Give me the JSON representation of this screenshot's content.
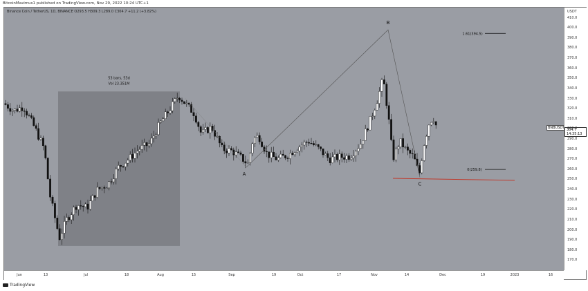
{
  "header": {
    "published_by": "BitcoinMaximus1 published on TradingView.com, Nov 29, 2022 10:24 UTC+1"
  },
  "legend": {
    "symbol_line": "Binance Coin / TetherUS, 1D, BINANCE",
    "ohlc": "O293.5 H309.3 L289.0 C304.7 +11.2 (+3.82%)"
  },
  "axis": {
    "unit": "USDT",
    "y_ticks": [
      "410.0",
      "400.0",
      "390.0",
      "380.0",
      "370.0",
      "360.0",
      "350.0",
      "340.0",
      "330.0",
      "320.0",
      "310.0",
      "300.0",
      "290.0",
      "280.0",
      "270.0",
      "260.0",
      "250.0",
      "240.0",
      "230.0",
      "220.0",
      "210.0",
      "200.0",
      "190.0",
      "180.0",
      "170.0"
    ],
    "x_ticks": [
      "Jun",
      "13",
      "Jul",
      "18",
      "Aug",
      "15",
      "Sep",
      "19",
      "Oct",
      "17",
      "Nov",
      "14",
      "Dec",
      "19",
      "2023",
      "16"
    ]
  },
  "current_price": {
    "symbol": "BNBUSDT",
    "price": "304.7",
    "countdown": "14:35:13"
  },
  "annotations": {
    "range_stats_line1": "53 bars, 53d",
    "range_stats_line2": "Vol 23.351M",
    "wave_a": "A",
    "wave_b": "B",
    "wave_c": "C",
    "fib_161": "1.61(394.5)",
    "fib_0": "0(259.8)"
  },
  "footer": {
    "brand": "TradingView"
  },
  "colors": {
    "plot_bg": "#9a9da4",
    "candle": "#111111",
    "support_line": "#c0392b",
    "range_box": "#7a7c82"
  },
  "chart_data": {
    "type": "candlestick",
    "ylim": [
      160,
      420
    ],
    "series_close_approx": [
      {
        "x": "Jun 1",
        "y": 325
      },
      {
        "x": "Jun 13",
        "y": 230
      },
      {
        "x": "Jun 18",
        "y": 190
      },
      {
        "x": "Jul 1",
        "y": 215
      },
      {
        "x": "Jul 18",
        "y": 260
      },
      {
        "x": "Aug 8",
        "y": 330
      },
      {
        "x": "Aug 15",
        "y": 315
      },
      {
        "x": "Sep 7",
        "y": 270
      },
      {
        "x": "Sep 19",
        "y": 275
      },
      {
        "x": "Oct 17",
        "y": 275
      },
      {
        "x": "Nov 8",
        "y": 345
      },
      {
        "x": "Nov 10",
        "y": 275
      },
      {
        "x": "Nov 22",
        "y": 255
      },
      {
        "x": "Nov 27",
        "y": 310
      },
      {
        "x": "Nov 29",
        "y": 304.7
      }
    ],
    "wave_points": [
      {
        "label": "A",
        "x": "Sep 7",
        "y": 262
      },
      {
        "label": "B",
        "x": "Nov 8",
        "y": 398
      },
      {
        "label": "C",
        "x": "Nov 22",
        "y": 252
      }
    ],
    "fib_levels": [
      {
        "label": "1.61(394.5)",
        "y": 394.5
      },
      {
        "label": "0(259.8)",
        "y": 259.8
      }
    ],
    "support_y": 250
  }
}
